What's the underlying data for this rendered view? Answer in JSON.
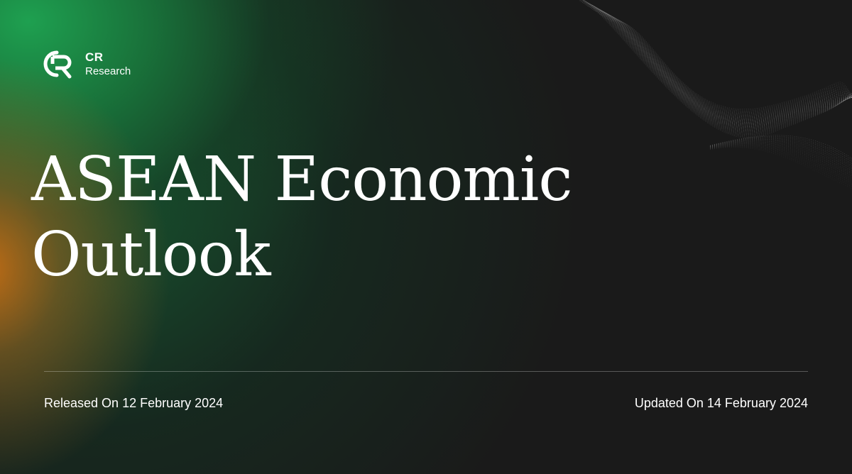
{
  "brand": {
    "name": "CR",
    "subtitle": "Research",
    "logo_icon": "cr-monogram-icon"
  },
  "cover": {
    "title_line1": "ASEAN Economic",
    "title_line2": "Outlook"
  },
  "footer": {
    "released": "Released On 12 February 2024",
    "updated": "Updated On 14 February 2024"
  },
  "colors": {
    "background": "#1a1a1a",
    "accent_green": "#1e9e50",
    "accent_orange": "#c86e14",
    "text": "#ffffff"
  }
}
